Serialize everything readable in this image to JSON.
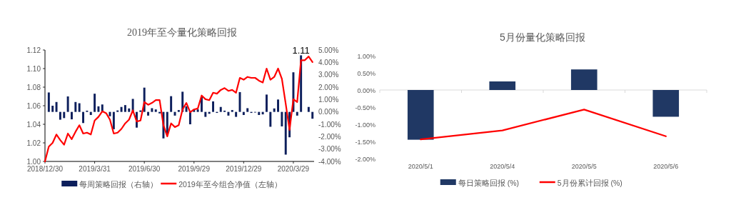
{
  "chart_data": [
    {
      "type": "bar",
      "title": "2019年至今量化策略回报",
      "legend": "bottom",
      "x": [
        "2018-12-30",
        "2019-01-06",
        "2019-01-13",
        "2019-01-20",
        "2019-01-27",
        "2019-02-03",
        "2019-02-10",
        "2019-02-17",
        "2019-02-24",
        "2019-03-03",
        "2019-03-10",
        "2019-03-17",
        "2019-03-24",
        "2019-03-31",
        "2019-04-07",
        "2019-04-14",
        "2019-04-21",
        "2019-04-28",
        "2019-05-05",
        "2019-05-12",
        "2019-05-19",
        "2019-05-26",
        "2019-06-02",
        "2019-06-09",
        "2019-06-16",
        "2019-06-23",
        "2019-06-30",
        "2019-07-07",
        "2019-07-14",
        "2019-07-21",
        "2019-07-28",
        "2019-08-04",
        "2019-08-11",
        "2019-08-18",
        "2019-08-25",
        "2019-09-01",
        "2019-09-08",
        "2019-09-15",
        "2019-09-22",
        "2019-09-29",
        "2019-10-06",
        "2019-10-13",
        "2019-10-20",
        "2019-10-27",
        "2019-11-03",
        "2019-11-10",
        "2019-11-17",
        "2019-11-24",
        "2019-12-01",
        "2019-12-08",
        "2019-12-15",
        "2019-12-22",
        "2019-12-29",
        "2020-01-05",
        "2020-01-12",
        "2020-01-19",
        "2020-01-26",
        "2020-02-02",
        "2020-02-09",
        "2020-02-16",
        "2020-02-23",
        "2020-03-01",
        "2020-03-08",
        "2020-03-15",
        "2020-03-22",
        "2020-03-29",
        "2020-04-05",
        "2020-04-12",
        "2020-04-19",
        "2020-04-26",
        "2020-05-03"
      ],
      "xlim": [
        "2018-12-30",
        "2020-05-06"
      ],
      "xticks": [
        {
          "value": "2018-12-30",
          "label": "2018/12/30"
        },
        {
          "value": "2019-03-31",
          "label": "2019/3/31"
        },
        {
          "value": "2019-06-30",
          "label": "2019/6/30"
        },
        {
          "value": "2019-09-29",
          "label": "2019/9/29"
        },
        {
          "value": "2019-12-29",
          "label": "2019/12/29"
        },
        {
          "value": "2020-03-29",
          "label": "2020/3/29"
        }
      ],
      "ylim": [
        1.0,
        1.12
      ],
      "yticks": [
        {
          "value": 1.0,
          "label": "1.00"
        },
        {
          "value": 1.02,
          "label": "1.02"
        },
        {
          "value": 1.04,
          "label": "1.04"
        },
        {
          "value": 1.06,
          "label": "1.06"
        },
        {
          "value": 1.08,
          "label": "1.08"
        },
        {
          "value": 1.1,
          "label": "1.10"
        },
        {
          "value": 1.12,
          "label": "1.12"
        }
      ],
      "y2lim": [
        -4,
        5
      ],
      "y2ticks": [
        {
          "value": -4,
          "label": "-4.00%"
        },
        {
          "value": -3,
          "label": "-3.00%"
        },
        {
          "value": -2,
          "label": "-2.00%"
        },
        {
          "value": -1,
          "label": "-1.00%"
        },
        {
          "value": 0,
          "label": "0.00%"
        },
        {
          "value": 1,
          "label": "1.00%"
        },
        {
          "value": 2,
          "label": "2.00%"
        },
        {
          "value": 3,
          "label": "3.00%"
        },
        {
          "value": 4,
          "label": "4.00%"
        },
        {
          "value": 5,
          "label": "5.00%"
        }
      ],
      "series": [
        {
          "name": "每周策略回报（右轴）",
          "color": "#0d1f5c",
          "axis": "y2",
          "values": [
            null,
            1.57,
            0.5,
            0.8,
            -0.63,
            -0.5,
            1.25,
            -0.6,
            0.8,
            0.7,
            -0.9,
            0.1,
            -0.25,
            1.47,
            0.45,
            0.6,
            null,
            -0.35,
            -1.4,
            0.12,
            0.4,
            0.55,
            0.28,
            1.05,
            -1.27,
            0.12,
            1.96,
            -0.3,
            0.3,
            0.2,
            -0.12,
            -2.14,
            -1.8,
            1.27,
            -0.3,
            0.15,
            1.63,
            0.45,
            -1.0,
            0.2,
            0.2,
            1.2,
            -0.4,
            -0.15,
            0.85,
            -0.08,
            0.4,
            0.1,
            -0.3,
            0.15,
            -0.4,
            1.6,
            -0.25,
            0.3,
            -0.08,
            -0.05,
            -0.25,
            -0.2,
            1.4,
            -1.2,
            0.28,
            1.0,
            -1.17,
            -3.45,
            -2.05,
            3.2,
            -0.3,
            4.57,
            null,
            0.4,
            -0.55
          ]
        },
        {
          "name": "2019年至今组合净值（左轴）",
          "type": "line",
          "color": "#ff0000",
          "values": [
            1.0,
            1.016,
            1.02,
            1.029,
            1.023,
            1.018,
            1.03,
            1.024,
            1.032,
            1.039,
            1.03,
            1.031,
            1.029,
            1.044,
            1.048,
            1.054,
            1.052,
            1.045,
            1.03,
            1.031,
            1.035,
            1.041,
            1.045,
            1.055,
            1.043,
            1.044,
            1.064,
            1.061,
            1.063,
            1.066,
            1.066,
            1.039,
            1.027,
            1.041,
            1.037,
            1.039,
            1.056,
            1.063,
            1.053,
            1.056,
            1.057,
            1.071,
            1.067,
            1.066,
            1.074,
            1.073,
            1.077,
            1.079,
            1.076,
            1.077,
            1.074,
            1.09,
            1.088,
            1.091,
            1.09,
            1.09,
            1.087,
            1.085,
            1.1,
            1.088,
            1.091,
            1.1,
            1.089,
            1.062,
            1.034,
            1.067,
            1.064,
            1.109,
            1.109,
            1.113,
            1.107
          ]
        }
      ],
      "annotations": [
        {
          "text": "1.11",
          "x": "2020-04-12",
          "y": 1.109
        }
      ]
    },
    {
      "type": "bar",
      "title": "5月份量化策略回报",
      "legend": "bottom",
      "categories": [
        "2020/5/1",
        "2020/5/4",
        "2020/5/5",
        "2020/5/6"
      ],
      "ylim": [
        -2,
        1
      ],
      "yticks": [
        {
          "value": -2,
          "label": "-2.00%"
        },
        {
          "value": -1.5,
          "label": "-1.50%"
        },
        {
          "value": -1,
          "label": "-1.00%"
        },
        {
          "value": -0.5,
          "label": "-0.50%"
        },
        {
          "value": 0,
          "label": "0.00%"
        },
        {
          "value": 0.5,
          "label": "0.50%"
        },
        {
          "value": 1,
          "label": "1.00%"
        }
      ],
      "series": [
        {
          "name": "每日策略回报 (%)",
          "color": "#203864",
          "values": [
            -1.45,
            0.25,
            0.6,
            -0.78
          ]
        },
        {
          "name": "5月份累计回报 (%)",
          "type": "line",
          "color": "#ff0000",
          "values": [
            -1.44,
            -1.18,
            -0.57,
            -1.35
          ]
        }
      ]
    }
  ]
}
